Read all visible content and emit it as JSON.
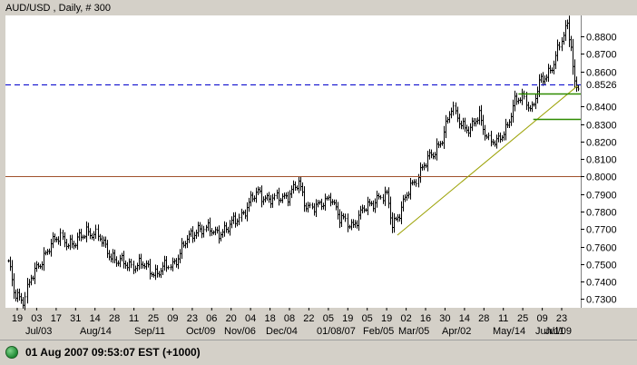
{
  "chart_data": {
    "type": "bar",
    "subtype": "ohlc",
    "title": "AUD/USD , Daily, # 300",
    "colors": {
      "background": "#ffffff",
      "bars": "#000000",
      "dashed_line": "#0000cc",
      "horizontal_line": "#a0522d",
      "trendline": "#9aa000",
      "channel_lines": "#2e8b00",
      "price_tag": "#0000cc"
    },
    "ylim": [
      0.725,
      0.892
    ],
    "y_ticks": [
      "0.8800",
      "0.8700",
      "0.8600",
      "0.8400",
      "0.8300",
      "0.8200",
      "0.8100",
      "0.8000",
      "0.7900",
      "0.7800",
      "0.7700",
      "0.7600",
      "0.7500",
      "0.7400",
      "0.7300"
    ],
    "x_day_labels": [
      "19",
      "03",
      "17",
      "31",
      "14",
      "28",
      "11",
      "25",
      "09",
      "23",
      "06",
      "20",
      "04",
      "18",
      "08",
      "22",
      "05",
      "19",
      "05",
      "19",
      "02",
      "16",
      "30",
      "14",
      "28",
      "11",
      "25",
      "09",
      "23"
    ],
    "x_month_labels": [
      "Jul/03",
      "Aug/14",
      "Sep/11",
      "Oct/09",
      "Nov/06",
      "Dec/04",
      "01/08/07",
      "Feb/05",
      "Mar/05",
      "Apr/02",
      "May/14",
      "Jun/11",
      "Jul/09"
    ],
    "price_anchors": [
      [
        0,
        0.75
      ],
      [
        3,
        0.734
      ],
      [
        8,
        0.73
      ],
      [
        12,
        0.741
      ],
      [
        20,
        0.757
      ],
      [
        28,
        0.766
      ],
      [
        35,
        0.76
      ],
      [
        42,
        0.77
      ],
      [
        50,
        0.763
      ],
      [
        58,
        0.751
      ],
      [
        65,
        0.75
      ],
      [
        72,
        0.749
      ],
      [
        80,
        0.745
      ],
      [
        88,
        0.75
      ],
      [
        95,
        0.762
      ],
      [
        102,
        0.771
      ],
      [
        110,
        0.768
      ],
      [
        118,
        0.77
      ],
      [
        126,
        0.78
      ],
      [
        134,
        0.791
      ],
      [
        142,
        0.786
      ],
      [
        150,
        0.79
      ],
      [
        156,
        0.795
      ],
      [
        160,
        0.784
      ],
      [
        167,
        0.782
      ],
      [
        173,
        0.79
      ],
      [
        178,
        0.775
      ],
      [
        185,
        0.773
      ],
      [
        192,
        0.782
      ],
      [
        198,
        0.788
      ],
      [
        203,
        0.788
      ],
      [
        206,
        0.773
      ],
      [
        210,
        0.78
      ],
      [
        216,
        0.793
      ],
      [
        222,
        0.806
      ],
      [
        228,
        0.812
      ],
      [
        233,
        0.823
      ],
      [
        238,
        0.838
      ],
      [
        244,
        0.83
      ],
      [
        248,
        0.826
      ],
      [
        253,
        0.835
      ],
      [
        258,
        0.821
      ],
      [
        262,
        0.818
      ],
      [
        267,
        0.828
      ],
      [
        272,
        0.842
      ],
      [
        277,
        0.845
      ],
      [
        281,
        0.839
      ],
      [
        285,
        0.852
      ],
      [
        289,
        0.858
      ],
      [
        293,
        0.866
      ],
      [
        297,
        0.877
      ],
      [
        300,
        0.886
      ],
      [
        302,
        0.876
      ],
      [
        304,
        0.853
      ],
      [
        306,
        0.852
      ]
    ],
    "dashed_level": 0.8526,
    "last_price_label": "0.8526",
    "horizontal_level": 0.8,
    "trendline": {
      "start": [
        209,
        0.7665
      ],
      "end": [
        306,
        0.852
      ]
    },
    "channel_top": {
      "from_index": 274,
      "to_index": 306,
      "level": 0.8475
    },
    "channel_bottom": {
      "from_index": 282,
      "to_index": 306,
      "level": 0.833
    },
    "grid": false,
    "legend": "none"
  },
  "status": {
    "text": "01 Aug 2007 09:53:07 EST (+1000)",
    "icon": "status-globe-icon"
  }
}
